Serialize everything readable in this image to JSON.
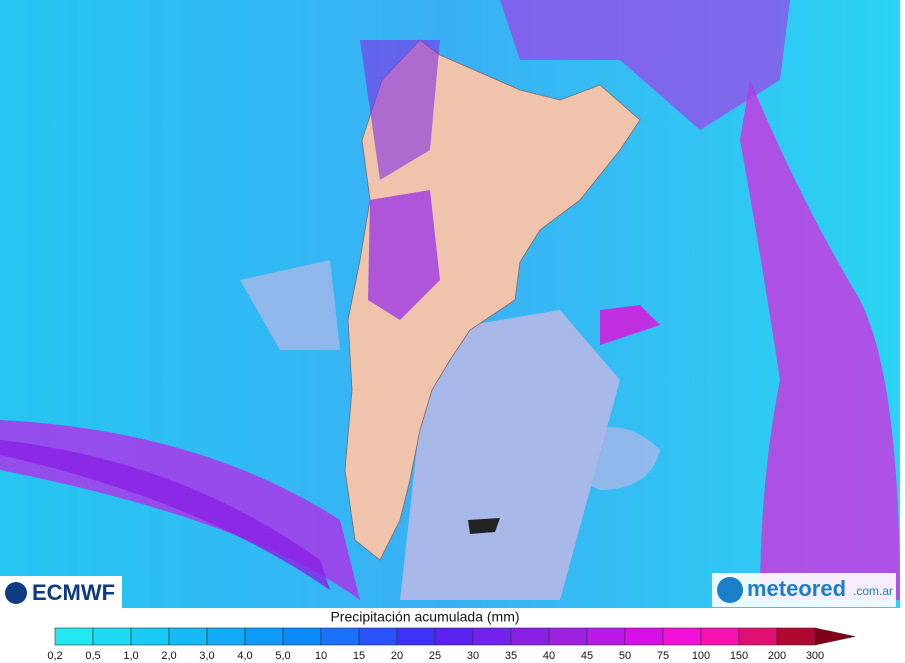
{
  "map": {
    "logos": {
      "left": "ECMWF",
      "right": "meteored",
      "right_suffix": ".com.ar"
    },
    "legend": {
      "title": "Precipitación acumulada (mm)",
      "ticks": [
        "0,2",
        "0,5",
        "1,0",
        "2,0",
        "3,0",
        "4,0",
        "5,0",
        "10",
        "15",
        "20",
        "25",
        "30",
        "35",
        "40",
        "45",
        "50",
        "75",
        "100",
        "150",
        "200",
        "300"
      ],
      "colors": [
        "#22e8f2",
        "#1edaf4",
        "#1acaf6",
        "#16baf8",
        "#12aafa",
        "#0e9afb",
        "#0a8afc",
        "#1a72fc",
        "#2a52fa",
        "#3e32f6",
        "#5a22ee",
        "#7222ea",
        "#8a20e6",
        "#a020e2",
        "#bc18e8",
        "#d810e8",
        "#f010d8",
        "#f810b0",
        "#e01070",
        "#b00830"
      ],
      "overflow_color": "#800018"
    }
  }
}
